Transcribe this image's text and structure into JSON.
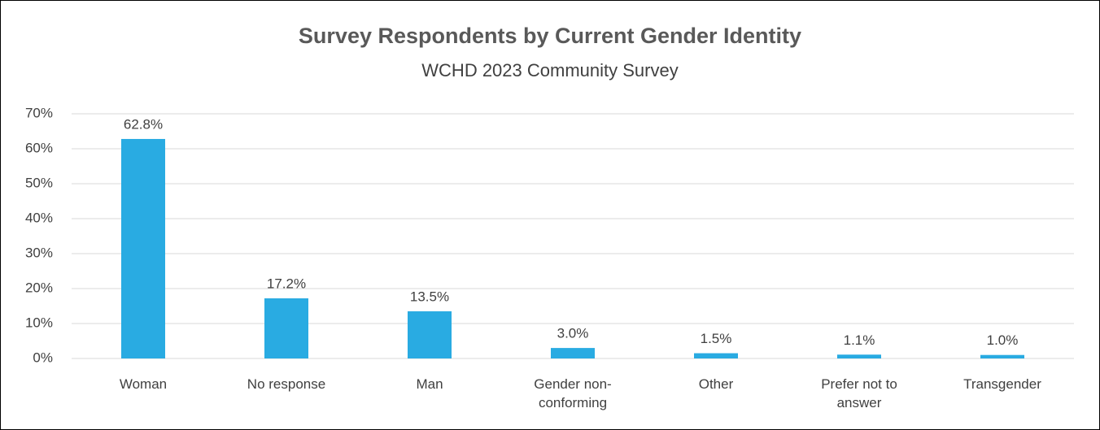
{
  "chart_data": {
    "type": "bar",
    "title": "Survey Respondents by Current Gender Identity",
    "subtitle": "WCHD 2023 Community Survey",
    "categories": [
      "Woman",
      "No response",
      "Man",
      "Gender non-conforming",
      "Other",
      "Prefer not to answer",
      "Transgender"
    ],
    "values": [
      62.8,
      17.2,
      13.5,
      3.0,
      1.5,
      1.1,
      1.0
    ],
    "value_labels": [
      "62.8%",
      "17.2%",
      "13.5%",
      "3.0%",
      "1.5%",
      "1.1%",
      "1.0%"
    ],
    "color": "#29abe2",
    "ylim": [
      0,
      70
    ],
    "yticks": [
      {
        "value": 0,
        "label": "0%"
      },
      {
        "value": 10,
        "label": "10%"
      },
      {
        "value": 20,
        "label": "20%"
      },
      {
        "value": 30,
        "label": "30%"
      },
      {
        "value": 40,
        "label": "40%"
      },
      {
        "value": 50,
        "label": "50%"
      },
      {
        "value": 60,
        "label": "60%"
      },
      {
        "value": 70,
        "label": "70%"
      }
    ],
    "grid": true
  }
}
